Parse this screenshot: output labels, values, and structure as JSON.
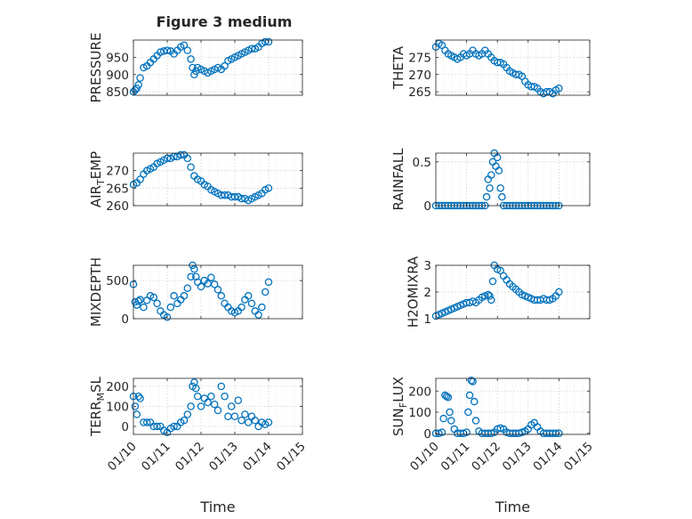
{
  "figure": {
    "title": "Figure 3 medium",
    "date_ticks": [
      "01/10",
      "01/11",
      "01/12",
      "01/13",
      "01/14",
      "01/15"
    ],
    "colors": {
      "marker": "#0072bd",
      "axis": "#262626",
      "grid": "#d0d0d0"
    }
  },
  "chart_data": [
    {
      "name": "pressure",
      "type": "scatter",
      "title": "Figure 3 medium",
      "ylabel": "PRESSURE",
      "xlabel": "",
      "xlim": [
        0,
        5
      ],
      "ylim": [
        840,
        1000
      ],
      "yticks": [
        850,
        900,
        950
      ],
      "ytick_labels": [
        "850",
        "900",
        "950"
      ],
      "x": [
        0.0,
        0.05,
        0.1,
        0.15,
        0.2,
        0.3,
        0.4,
        0.5,
        0.6,
        0.7,
        0.8,
        0.9,
        1.0,
        1.1,
        1.2,
        1.3,
        1.4,
        1.5,
        1.6,
        1.7,
        1.75,
        1.8,
        1.85,
        1.9,
        2.0,
        2.1,
        2.2,
        2.3,
        2.4,
        2.5,
        2.6,
        2.7,
        2.8,
        2.9,
        3.0,
        3.1,
        3.2,
        3.3,
        3.4,
        3.5,
        3.6,
        3.7,
        3.8,
        3.9,
        4.0
      ],
      "y": [
        850,
        855,
        860,
        870,
        890,
        920,
        925,
        935,
        945,
        955,
        965,
        968,
        970,
        968,
        960,
        970,
        980,
        985,
        970,
        945,
        920,
        900,
        910,
        920,
        915,
        910,
        905,
        910,
        915,
        920,
        915,
        925,
        940,
        945,
        950,
        955,
        960,
        965,
        970,
        975,
        975,
        980,
        990,
        995,
        995
      ]
    },
    {
      "name": "theta",
      "type": "scatter",
      "title": "",
      "ylabel": "THETA",
      "xlabel": "",
      "xlim": [
        0,
        5
      ],
      "ylim": [
        264,
        280
      ],
      "yticks": [
        265,
        270,
        275
      ],
      "ytick_labels": [
        "265",
        "270",
        "275"
      ],
      "x": [
        0.0,
        0.1,
        0.2,
        0.3,
        0.4,
        0.5,
        0.6,
        0.7,
        0.8,
        0.9,
        1.0,
        1.1,
        1.2,
        1.3,
        1.4,
        1.5,
        1.6,
        1.7,
        1.8,
        1.9,
        2.0,
        2.1,
        2.2,
        2.3,
        2.4,
        2.5,
        2.6,
        2.7,
        2.8,
        2.9,
        3.0,
        3.1,
        3.2,
        3.3,
        3.4,
        3.5,
        3.6,
        3.7,
        3.8,
        3.9,
        4.0
      ],
      "y": [
        278,
        279,
        278.5,
        277,
        276,
        275.5,
        275,
        274.5,
        275,
        276,
        275.5,
        276,
        277,
        276,
        275.5,
        276,
        277,
        276,
        275,
        274,
        273.5,
        273.5,
        273,
        272,
        271,
        270.5,
        270,
        270,
        269.5,
        268,
        267,
        266.5,
        266.5,
        266,
        265,
        264.5,
        265,
        265,
        264.5,
        265.5,
        266
      ]
    },
    {
      "name": "air_temp",
      "type": "scatter",
      "title": "",
      "ylabel": "AIR_TEMP",
      "xlabel": "",
      "xlim": [
        0,
        5
      ],
      "ylim": [
        260,
        275
      ],
      "yticks": [
        260,
        265,
        270
      ],
      "ytick_labels": [
        "260",
        "265",
        "270"
      ],
      "x": [
        0.0,
        0.1,
        0.2,
        0.3,
        0.4,
        0.5,
        0.6,
        0.7,
        0.8,
        0.9,
        1.0,
        1.1,
        1.2,
        1.3,
        1.4,
        1.5,
        1.6,
        1.7,
        1.8,
        1.9,
        2.0,
        2.1,
        2.2,
        2.3,
        2.4,
        2.5,
        2.6,
        2.7,
        2.8,
        2.9,
        3.0,
        3.1,
        3.2,
        3.3,
        3.4,
        3.5,
        3.6,
        3.7,
        3.8,
        3.9,
        4.0
      ],
      "y": [
        266,
        266.5,
        267.5,
        269,
        270,
        270.5,
        271,
        272,
        272.5,
        273,
        273.5,
        273.5,
        274,
        274,
        274.5,
        274.5,
        273.5,
        271,
        268.5,
        267.5,
        267,
        266,
        265.5,
        264.5,
        264,
        263.5,
        263,
        263,
        263,
        262.5,
        262.5,
        262.5,
        262,
        262,
        261.5,
        262,
        262.5,
        263,
        263.5,
        264.5,
        265
      ]
    },
    {
      "name": "rainfall",
      "type": "scatter",
      "title": "",
      "ylabel": "RAINFALL",
      "xlabel": "",
      "xlim": [
        0,
        5
      ],
      "ylim": [
        0,
        0.6
      ],
      "yticks": [
        0,
        0.5
      ],
      "ytick_labels": [
        "0",
        "0.5"
      ],
      "x": [
        0.0,
        0.1,
        0.2,
        0.3,
        0.4,
        0.5,
        0.6,
        0.7,
        0.8,
        0.9,
        1.0,
        1.1,
        1.2,
        1.3,
        1.4,
        1.5,
        1.6,
        1.65,
        1.7,
        1.75,
        1.8,
        1.85,
        1.9,
        1.95,
        2.0,
        2.05,
        2.1,
        2.15,
        2.2,
        2.3,
        2.4,
        2.5,
        2.6,
        2.7,
        2.8,
        2.9,
        3.0,
        3.1,
        3.2,
        3.3,
        3.4,
        3.5,
        3.6,
        3.7,
        3.8,
        3.9,
        4.0
      ],
      "y": [
        0,
        0,
        0,
        0,
        0,
        0,
        0,
        0,
        0,
        0,
        0,
        0,
        0,
        0,
        0,
        0,
        0,
        0.1,
        0.3,
        0.2,
        0.35,
        0.5,
        0.6,
        0.45,
        0.55,
        0.4,
        0.2,
        0.1,
        0,
        0,
        0,
        0,
        0,
        0,
        0,
        0,
        0,
        0,
        0,
        0,
        0,
        0,
        0,
        0,
        0,
        0,
        0
      ]
    },
    {
      "name": "mixdepth",
      "type": "scatter",
      "title": "",
      "ylabel": "MIXDEPTH",
      "xlabel": "",
      "xlim": [
        0,
        5
      ],
      "ylim": [
        0,
        700
      ],
      "yticks": [
        0,
        500
      ],
      "ytick_labels": [
        "0",
        "500"
      ],
      "x": [
        0.0,
        0.05,
        0.1,
        0.15,
        0.2,
        0.3,
        0.4,
        0.5,
        0.6,
        0.7,
        0.8,
        0.9,
        1.0,
        1.1,
        1.2,
        1.3,
        1.4,
        1.5,
        1.6,
        1.7,
        1.75,
        1.8,
        1.85,
        1.9,
        2.0,
        2.1,
        2.2,
        2.3,
        2.4,
        2.5,
        2.6,
        2.7,
        2.8,
        2.9,
        3.0,
        3.1,
        3.2,
        3.3,
        3.4,
        3.5,
        3.6,
        3.7,
        3.8,
        3.9,
        4.0
      ],
      "y": [
        450,
        220,
        180,
        230,
        250,
        150,
        240,
        300,
        280,
        200,
        100,
        50,
        20,
        150,
        300,
        200,
        250,
        300,
        400,
        550,
        700,
        650,
        550,
        480,
        420,
        500,
        460,
        540,
        450,
        380,
        300,
        200,
        150,
        100,
        80,
        100,
        150,
        250,
        300,
        200,
        100,
        50,
        150,
        350,
        480
      ]
    },
    {
      "name": "h2omixra",
      "type": "scatter",
      "title": "",
      "ylabel": "H2OMIXRA",
      "xlabel": "",
      "xlim": [
        0,
        5
      ],
      "ylim": [
        1,
        3
      ],
      "yticks": [
        1,
        2,
        3
      ],
      "ytick_labels": [
        "1",
        "2",
        "3"
      ],
      "x": [
        0.0,
        0.1,
        0.2,
        0.3,
        0.4,
        0.5,
        0.6,
        0.7,
        0.8,
        0.9,
        1.0,
        1.1,
        1.2,
        1.3,
        1.4,
        1.5,
        1.6,
        1.7,
        1.75,
        1.8,
        1.85,
        1.9,
        2.0,
        2.1,
        2.2,
        2.3,
        2.4,
        2.5,
        2.6,
        2.7,
        2.8,
        2.9,
        3.0,
        3.1,
        3.2,
        3.3,
        3.4,
        3.5,
        3.6,
        3.7,
        3.8,
        3.9,
        4.0
      ],
      "y": [
        1.1,
        1.15,
        1.2,
        1.25,
        1.3,
        1.35,
        1.4,
        1.45,
        1.5,
        1.55,
        1.6,
        1.6,
        1.65,
        1.6,
        1.7,
        1.8,
        1.85,
        1.9,
        1.85,
        1.7,
        2.4,
        3.0,
        2.85,
        2.8,
        2.6,
        2.45,
        2.3,
        2.2,
        2.1,
        2.0,
        1.9,
        1.85,
        1.8,
        1.75,
        1.7,
        1.7,
        1.7,
        1.75,
        1.7,
        1.7,
        1.75,
        1.85,
        2.0
      ]
    },
    {
      "name": "terr_msl",
      "type": "scatter",
      "title": "",
      "ylabel": "TERR_MSL",
      "xlabel": "Time",
      "xlim": [
        0,
        5
      ],
      "ylim": [
        -40,
        240
      ],
      "yticks": [
        0,
        100,
        200
      ],
      "ytick_labels": [
        "0",
        "100",
        "200"
      ],
      "x": [
        0.0,
        0.05,
        0.1,
        0.15,
        0.2,
        0.3,
        0.4,
        0.5,
        0.6,
        0.7,
        0.8,
        0.9,
        1.0,
        1.1,
        1.2,
        1.3,
        1.4,
        1.5,
        1.6,
        1.7,
        1.75,
        1.8,
        1.85,
        1.9,
        2.0,
        2.1,
        2.2,
        2.3,
        2.4,
        2.5,
        2.6,
        2.7,
        2.8,
        2.9,
        3.0,
        3.1,
        3.2,
        3.3,
        3.4,
        3.5,
        3.6,
        3.7,
        3.8,
        3.9,
        4.0
      ],
      "y": [
        150,
        100,
        60,
        150,
        140,
        20,
        20,
        20,
        0,
        0,
        0,
        -20,
        -30,
        -10,
        0,
        0,
        20,
        30,
        60,
        100,
        200,
        220,
        190,
        150,
        100,
        140,
        120,
        150,
        110,
        80,
        200,
        150,
        50,
        100,
        50,
        130,
        30,
        60,
        20,
        50,
        30,
        0,
        20,
        10,
        20
      ]
    },
    {
      "name": "sun_flux",
      "type": "scatter",
      "title": "",
      "ylabel": "SUN_FLUX",
      "xlabel": "Time",
      "xlim": [
        0,
        5
      ],
      "ylim": [
        -5,
        260
      ],
      "yticks": [
        0,
        100,
        200
      ],
      "ytick_labels": [
        "0",
        "100",
        "200"
      ],
      "x": [
        0.0,
        0.1,
        0.2,
        0.25,
        0.3,
        0.35,
        0.4,
        0.45,
        0.5,
        0.6,
        0.7,
        0.8,
        0.9,
        1.0,
        1.05,
        1.1,
        1.15,
        1.2,
        1.25,
        1.3,
        1.4,
        1.5,
        1.6,
        1.7,
        1.8,
        1.9,
        2.0,
        2.1,
        2.2,
        2.3,
        2.4,
        2.5,
        2.6,
        2.7,
        2.8,
        2.9,
        3.0,
        3.1,
        3.2,
        3.3,
        3.4,
        3.5,
        3.6,
        3.7,
        3.8,
        3.9,
        4.0
      ],
      "y": [
        0,
        0,
        5,
        70,
        180,
        175,
        170,
        100,
        60,
        20,
        0,
        0,
        0,
        5,
        100,
        180,
        250,
        245,
        150,
        60,
        10,
        0,
        0,
        0,
        0,
        5,
        20,
        25,
        20,
        5,
        0,
        0,
        0,
        0,
        5,
        10,
        20,
        40,
        50,
        30,
        10,
        0,
        0,
        0,
        0,
        0,
        0
      ]
    }
  ]
}
